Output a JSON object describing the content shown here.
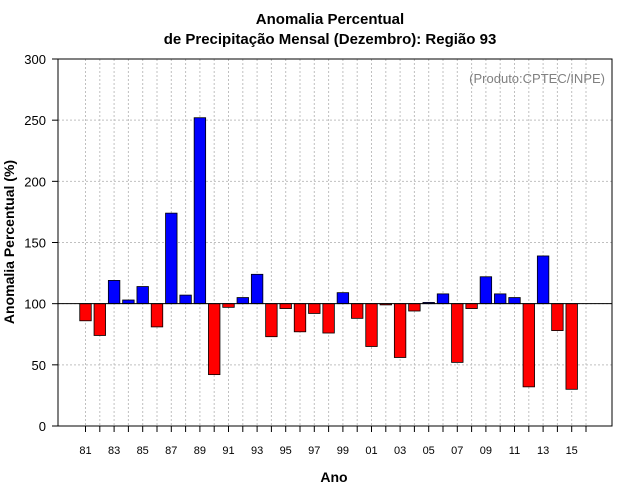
{
  "chart_data": {
    "type": "bar",
    "title_line1": "Anomalia Percentual",
    "title_line2": "de Precipitação Mensal (Dezembro): Região 93",
    "credit": "(Produto:CPTEC/INPE)",
    "xlabel": "Ano",
    "ylabel": "Anomalia Percentual (%)",
    "ylim": [
      0,
      300
    ],
    "yticks": [
      0,
      50,
      100,
      150,
      200,
      250,
      300
    ],
    "baseline": 100,
    "grid": true,
    "colors": {
      "above": "#0000ff",
      "below": "#ff0000",
      "edge": "#000000",
      "grid": "#c0c0c0"
    },
    "categories": [
      "81",
      "82",
      "83",
      "84",
      "85",
      "86",
      "87",
      "88",
      "89",
      "90",
      "91",
      "92",
      "93",
      "94",
      "95",
      "96",
      "97",
      "98",
      "99",
      "00",
      "01",
      "02",
      "03",
      "04",
      "05",
      "06",
      "07",
      "08",
      "09",
      "10",
      "11",
      "12",
      "13",
      "14",
      "15"
    ],
    "tick_labels": [
      "81",
      "",
      "83",
      "",
      "85",
      "",
      "87",
      "",
      "89",
      "",
      "91",
      "",
      "93",
      "",
      "95",
      "",
      "97",
      "",
      "99",
      "",
      "01",
      "",
      "03",
      "",
      "05",
      "",
      "07",
      "",
      "09",
      "",
      "11",
      "",
      "13",
      "",
      "15"
    ],
    "values": [
      86,
      74,
      119,
      103,
      114,
      81,
      174,
      107,
      252,
      42,
      97,
      105,
      124,
      73,
      96,
      77,
      92,
      76,
      109,
      88,
      65,
      99,
      56,
      94,
      101,
      108,
      52,
      96,
      122,
      108,
      105,
      32,
      139,
      78,
      30
    ]
  }
}
